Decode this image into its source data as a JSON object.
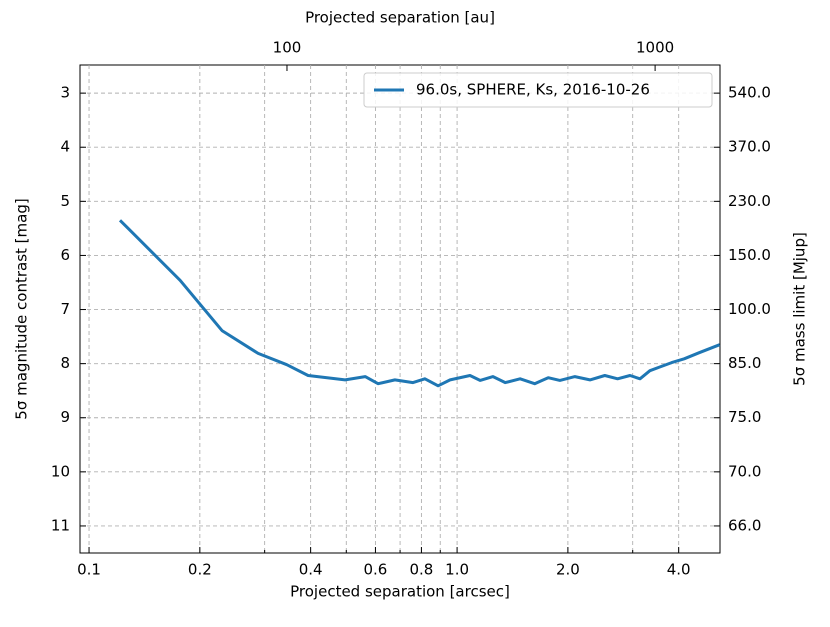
{
  "chart_data": {
    "type": "line",
    "xlabel": "Projected separation [arcsec]",
    "x2label": "Projected separation [au]",
    "ylabel": "5σ magnitude contrast [mag]",
    "y2label": "5σ mass limit [Mjup]",
    "xscale": "log",
    "x2scale": "log",
    "xlim": [
      0.0945,
      5.18
    ],
    "xticks": [
      0.1,
      0.2,
      0.4,
      0.6,
      0.8,
      {
        "value": 1,
        "label": "1.0"
      },
      {
        "value": 2,
        "label": "2.0"
      },
      {
        "value": 4,
        "label": "4.0"
      }
    ],
    "xminorticks": [
      0.3,
      0.5,
      0.7,
      0.9,
      3
    ],
    "x2lim": [
      27.4,
      1500.7
    ],
    "x2ticks": [
      100,
      1000
    ],
    "ylim": [
      2.48,
      11.5
    ],
    "y_inverted": true,
    "yticks": [
      3,
      4,
      5,
      6,
      7,
      8,
      9,
      10,
      11
    ],
    "y2ticks": [
      {
        "value": 540,
        "label": "540.0"
      },
      {
        "value": 370,
        "label": "370.0"
      },
      {
        "value": 230,
        "label": "230.0"
      },
      {
        "value": 150,
        "label": "150.0"
      },
      {
        "value": 100,
        "label": "100.0"
      },
      {
        "value": 85,
        "label": "85.0"
      },
      {
        "value": 75,
        "label": "75.0"
      },
      {
        "value": 70,
        "label": "70.0"
      },
      {
        "value": 66,
        "label": "66.0"
      }
    ],
    "grid": true,
    "legend": "upper right",
    "x": [
      0.1214,
      0.1768,
      0.2297,
      0.2879,
      0.3446,
      0.3938,
      0.4963,
      0.5627,
      0.61,
      0.6776,
      0.7587,
      0.8176,
      0.888,
      0.957,
      1.084,
      1.155,
      1.252,
      1.352,
      1.483,
      1.625,
      1.768,
      1.903,
      2.09,
      2.297,
      2.52,
      2.73,
      2.95,
      3.14,
      3.34,
      3.56,
      3.83,
      4.14,
      4.54,
      5.17
    ],
    "series": [
      {
        "name": "96.0s, SPHERE, Ks, 2016-10-26",
        "color": "#1f77b4",
        "values": [
          5.35,
          6.46,
          7.39,
          7.81,
          8.02,
          8.22,
          8.3,
          8.24,
          8.37,
          8.3,
          8.35,
          8.28,
          8.41,
          8.3,
          8.22,
          8.31,
          8.24,
          8.35,
          8.28,
          8.37,
          8.26,
          8.31,
          8.24,
          8.3,
          8.22,
          8.28,
          8.22,
          8.28,
          8.13,
          8.06,
          7.98,
          7.91,
          7.8,
          7.65
        ]
      }
    ]
  }
}
